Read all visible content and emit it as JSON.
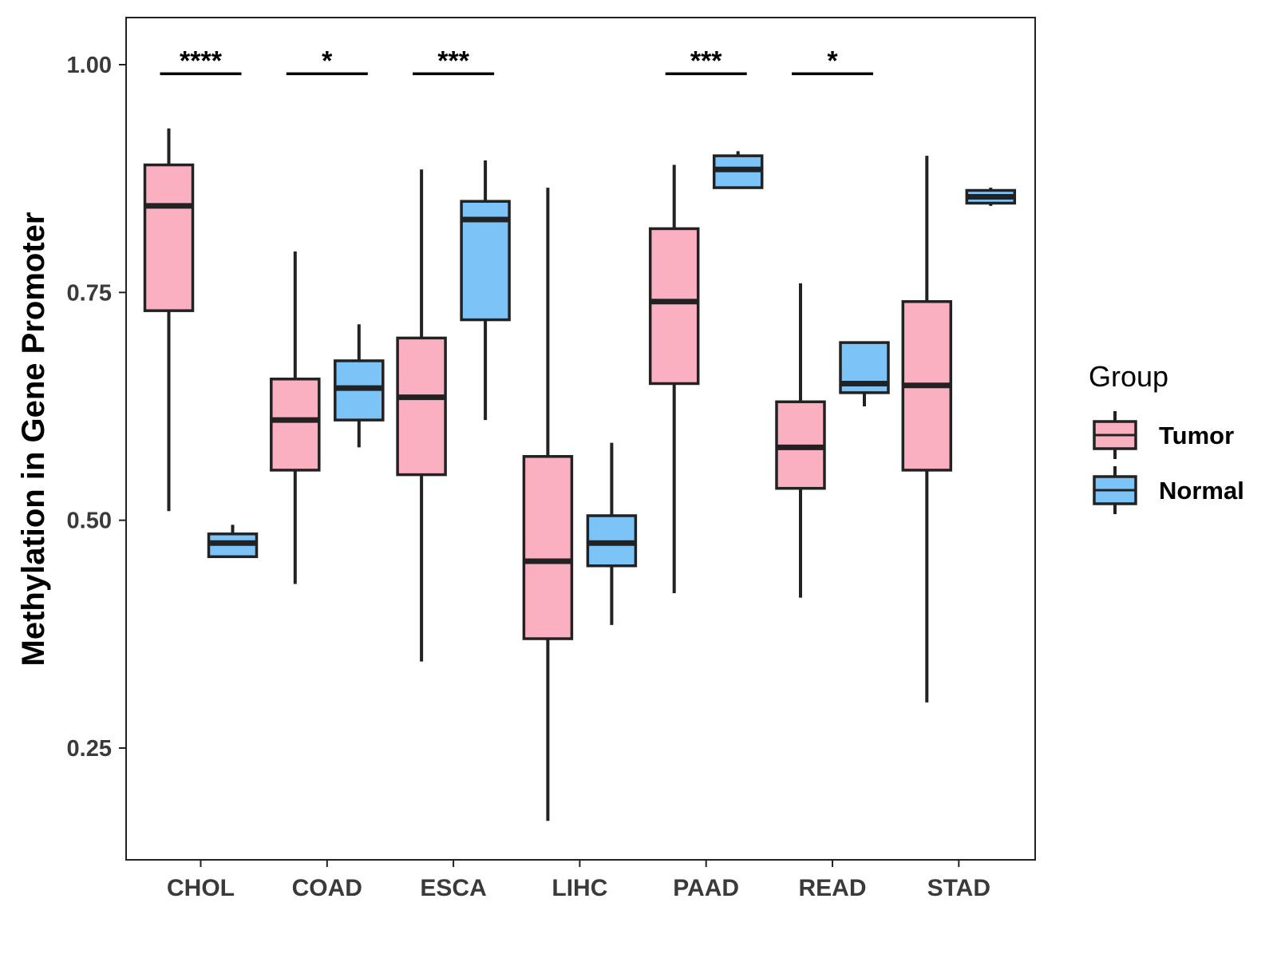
{
  "chart_data": {
    "type": "boxplot",
    "title": "",
    "xlabel": "",
    "ylabel": "Methylation in Gene Promoter",
    "ylim": [
      0.125,
      1.05
    ],
    "yticks": [
      0.25,
      0.5,
      0.75,
      1.0
    ],
    "ytick_labels": [
      "0.25",
      "0.50",
      "0.75",
      "1.00"
    ],
    "grid": false,
    "categories": [
      "CHOL",
      "COAD",
      "ESCA",
      "LIHC",
      "PAAD",
      "READ",
      "STAD"
    ],
    "series": [
      {
        "name": "Tumor",
        "color": "#FBB0C2",
        "boxes": [
          {
            "whisker_low": 0.51,
            "q1": 0.73,
            "median": 0.845,
            "q3": 0.89,
            "whisker_high": 0.93
          },
          {
            "whisker_low": 0.43,
            "q1": 0.555,
            "median": 0.61,
            "q3": 0.655,
            "whisker_high": 0.795
          },
          {
            "whisker_low": 0.345,
            "q1": 0.55,
            "median": 0.635,
            "q3": 0.7,
            "whisker_high": 0.885
          },
          {
            "whisker_low": 0.17,
            "q1": 0.37,
            "median": 0.455,
            "q3": 0.57,
            "whisker_high": 0.865
          },
          {
            "whisker_low": 0.42,
            "q1": 0.65,
            "median": 0.74,
            "q3": 0.82,
            "whisker_high": 0.89
          },
          {
            "whisker_low": 0.415,
            "q1": 0.535,
            "median": 0.58,
            "q3": 0.63,
            "whisker_high": 0.76
          },
          {
            "whisker_low": 0.3,
            "q1": 0.555,
            "median": 0.648,
            "q3": 0.74,
            "whisker_high": 0.9
          }
        ]
      },
      {
        "name": "Normal",
        "color": "#7CC3F8",
        "boxes": [
          {
            "whisker_low": 0.46,
            "q1": 0.46,
            "median": 0.475,
            "q3": 0.485,
            "whisker_high": 0.495
          },
          {
            "whisker_low": 0.58,
            "q1": 0.61,
            "median": 0.645,
            "q3": 0.675,
            "whisker_high": 0.715
          },
          {
            "whisker_low": 0.61,
            "q1": 0.72,
            "median": 0.83,
            "q3": 0.85,
            "whisker_high": 0.895
          },
          {
            "whisker_low": 0.385,
            "q1": 0.45,
            "median": 0.475,
            "q3": 0.505,
            "whisker_high": 0.585
          },
          {
            "whisker_low": 0.865,
            "q1": 0.865,
            "median": 0.885,
            "q3": 0.9,
            "whisker_high": 0.905
          },
          {
            "whisker_low": 0.625,
            "q1": 0.64,
            "median": 0.65,
            "q3": 0.695,
            "whisker_high": 0.695
          },
          {
            "whisker_low": 0.845,
            "q1": 0.848,
            "median": 0.855,
            "q3": 0.862,
            "whisker_high": 0.865
          }
        ]
      }
    ],
    "significance": [
      {
        "category": "CHOL",
        "label": "****",
        "y": 0.99
      },
      {
        "category": "COAD",
        "label": "*",
        "y": 0.99
      },
      {
        "category": "ESCA",
        "label": "***",
        "y": 0.99
      },
      {
        "category": "PAAD",
        "label": "***",
        "y": 0.99
      },
      {
        "category": "READ",
        "label": "*",
        "y": 0.99
      }
    ],
    "legend": {
      "title": "Group",
      "position": "right",
      "entries": [
        "Tumor",
        "Normal"
      ]
    }
  }
}
